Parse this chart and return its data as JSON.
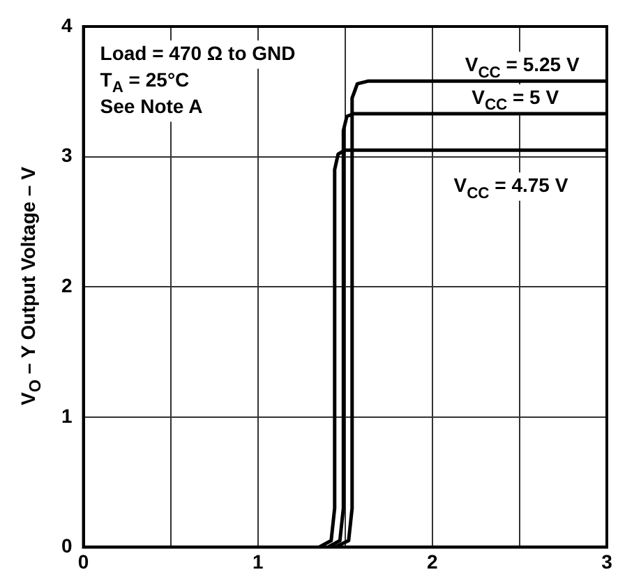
{
  "chart_data": {
    "type": "line",
    "ylabel": "V$_{O}$ – Y Output Voltage – V",
    "annotations": [
      "Load = 470 Ω to GND",
      "T$_{A}$ = 25°C",
      "See Note A"
    ],
    "series": [
      {
        "name": "V$_{CC}$ = 5.25 V",
        "color": "#000000",
        "x": [
          0,
          1.44,
          1.52,
          1.54,
          1.54,
          1.57,
          1.63,
          3
        ],
        "values": [
          0,
          0,
          0.05,
          0.3,
          3.45,
          3.56,
          3.58,
          3.58
        ]
      },
      {
        "name": "V$_{CC}$ = 5 V",
        "color": "#000000",
        "x": [
          0,
          1.4,
          1.47,
          1.49,
          1.49,
          1.51,
          1.55,
          3
        ],
        "values": [
          0,
          0,
          0.05,
          0.3,
          3.2,
          3.31,
          3.33,
          3.33
        ]
      },
      {
        "name": "V$_{CC}$ = 4.75 V",
        "color": "#000000",
        "x": [
          0,
          1.35,
          1.42,
          1.44,
          1.44,
          1.46,
          1.5,
          3
        ],
        "values": [
          0,
          0,
          0.05,
          0.3,
          2.9,
          3.02,
          3.05,
          3.05
        ]
      }
    ],
    "xlim": [
      0,
      3
    ],
    "xticks": [
      0,
      {
        "value": 0.5,
        "label": null
      },
      1,
      {
        "value": 1.5,
        "label": null
      },
      2,
      {
        "value": 2.5,
        "label": null
      },
      3
    ],
    "ylim": [
      0,
      4
    ],
    "yticks": [
      0,
      1,
      2,
      3,
      4
    ],
    "grid": true,
    "marker": "none",
    "line_style": "solid"
  }
}
